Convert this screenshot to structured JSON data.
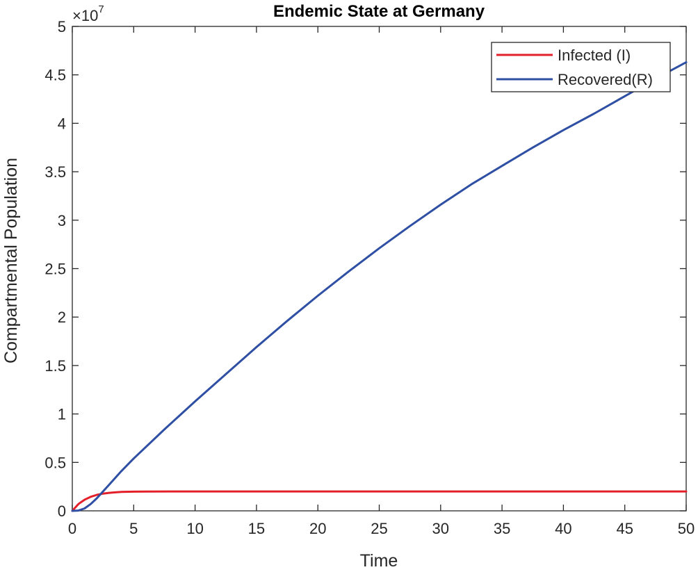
{
  "chart_data": {
    "type": "line",
    "title": "Endemic State at Germany",
    "xlabel": "Time",
    "ylabel": "Compartmental Population",
    "xlim": [
      0,
      50
    ],
    "ylim": [
      0,
      50000000
    ],
    "x_ticks": [
      0,
      5,
      10,
      15,
      20,
      25,
      30,
      35,
      40,
      45,
      50
    ],
    "x_tick_labels": [
      "0",
      "5",
      "10",
      "15",
      "20",
      "25",
      "30",
      "35",
      "40",
      "45",
      "50"
    ],
    "y_ticks": [
      0,
      5000000,
      10000000,
      15000000,
      20000000,
      25000000,
      30000000,
      35000000,
      40000000,
      45000000,
      50000000
    ],
    "y_tick_labels": [
      "0",
      "0.5",
      "1",
      "1.5",
      "2",
      "2.5",
      "3",
      "3.5",
      "4",
      "4.5",
      "5"
    ],
    "y_exponent_label": "×10",
    "y_exponent_power": "7",
    "grid": false,
    "legend_position": "top-right",
    "series": [
      {
        "name": "Infected (I)",
        "color": "#e3202a",
        "x": [
          0,
          0.5,
          1,
          1.5,
          2,
          2.5,
          3,
          3.5,
          4,
          5,
          6,
          8,
          10,
          15,
          20,
          25,
          30,
          35,
          40,
          45,
          50
        ],
        "y": [
          0,
          700000,
          1150000,
          1450000,
          1650000,
          1780000,
          1860000,
          1910000,
          1950000,
          1980000,
          1995000,
          2000000,
          2000000,
          2000000,
          2000000,
          2000000,
          2000000,
          2000000,
          2000000,
          2000000,
          2000000
        ]
      },
      {
        "name": "Recovered(R)",
        "color": "#2e4fa3",
        "x": [
          0,
          0.5,
          1,
          1.5,
          2,
          3,
          4,
          5,
          7.5,
          10,
          12.5,
          15,
          17.5,
          20,
          22.5,
          25,
          27.5,
          30,
          32.5,
          35,
          37.5,
          40,
          42.5,
          45,
          47.5,
          50
        ],
        "y": [
          0,
          30000,
          250000,
          700000,
          1300000,
          2700000,
          4100000,
          5400000,
          8400000,
          11300000,
          14100000,
          16900000,
          19600000,
          22200000,
          24700000,
          27100000,
          29400000,
          31600000,
          33700000,
          35600000,
          37500000,
          39300000,
          41000000,
          42800000,
          44600000,
          46300000
        ]
      }
    ]
  }
}
